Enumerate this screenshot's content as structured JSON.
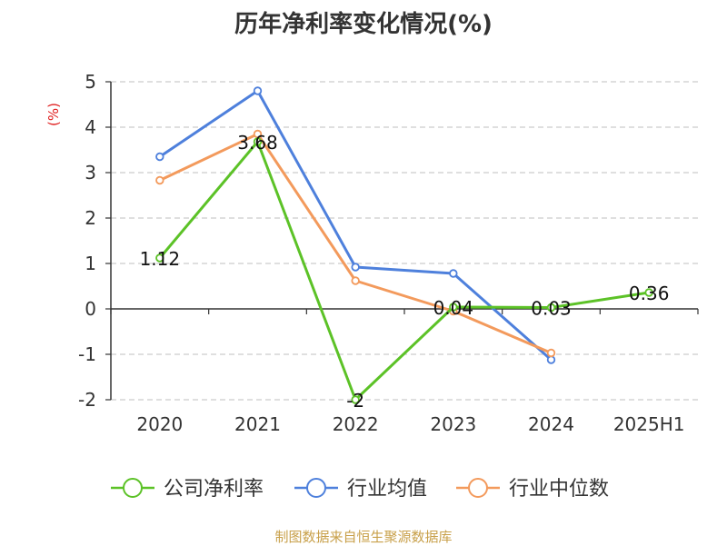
{
  "chart_data": {
    "type": "line",
    "title": "历年净利率变化情况(%)",
    "ylabel": "(%)",
    "xlabel": "",
    "categories": [
      "2020",
      "2021",
      "2022",
      "2023",
      "2024",
      "2025H1"
    ],
    "ylim": [
      -2,
      5
    ],
    "yticks": [
      5,
      4,
      3,
      2,
      1,
      0,
      -1,
      -2
    ],
    "grid": true,
    "legend_position": "bottom",
    "series": [
      {
        "name": "公司净利率",
        "color": "#5cc227",
        "values": [
          1.12,
          3.68,
          -2,
          0.04,
          0.03,
          0.36
        ],
        "labels": [
          "1.12",
          "3.68",
          "-2",
          "0.04",
          "0.03",
          "0.36"
        ]
      },
      {
        "name": "行业均值",
        "color": "#4e80dc",
        "values": [
          3.35,
          4.8,
          0.92,
          0.78,
          -1.12,
          null
        ]
      },
      {
        "name": "行业中位数",
        "color": "#f39a5c",
        "values": [
          2.83,
          3.85,
          0.62,
          -0.05,
          -0.97,
          null
        ]
      }
    ]
  },
  "source": "制图数据来自恒生聚源数据库"
}
